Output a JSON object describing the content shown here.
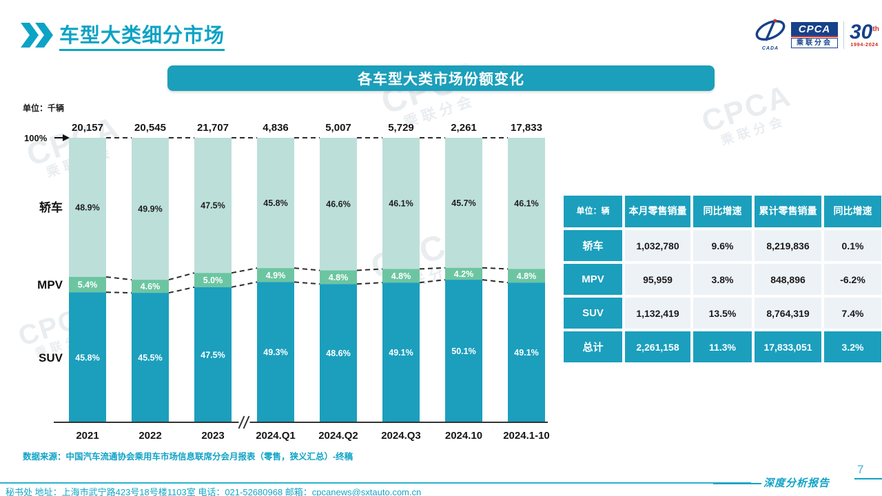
{
  "header": {
    "title": "车型大类细分市场"
  },
  "logo": {
    "swoosh_sub": "CADA",
    "cpca_text": "CPCA",
    "cpca_sub": "乘联分会",
    "anniversary_number": "30",
    "anniversary_sup": "th",
    "anniversary_years": "1994-2024"
  },
  "banner": {
    "title": "各车型大类市场份额变化"
  },
  "chart_data": {
    "type": "bar",
    "stacked": true,
    "title": "各车型大类市场份额变化",
    "unit_label": "单位：千辆",
    "axis_top_label": "100%",
    "ylim": [
      0,
      100
    ],
    "categories": [
      "2021",
      "2022",
      "2023",
      "2024.Q1",
      "2024.Q2",
      "2024.Q3",
      "2024.10",
      "2024.1-10"
    ],
    "totals": [
      "20,157",
      "20,545",
      "21,707",
      "4,836",
      "5,007",
      "5,729",
      "2,261",
      "17,833"
    ],
    "series": [
      {
        "name": "SUV",
        "color": "#1b9fbd",
        "label_color": "#ffffff",
        "values": [
          45.8,
          45.5,
          47.5,
          49.3,
          48.6,
          49.1,
          50.1,
          49.1
        ]
      },
      {
        "name": "MPV",
        "color": "#6cc5a1",
        "label_color": "#ffffff",
        "values": [
          5.4,
          4.6,
          5.0,
          4.9,
          4.8,
          4.8,
          4.2,
          4.8
        ]
      },
      {
        "name": "轿车",
        "color": "#bcdfd9",
        "label_color": "#1f1f1f",
        "values": [
          48.9,
          49.9,
          47.5,
          45.8,
          46.6,
          46.1,
          45.7,
          46.1
        ]
      }
    ],
    "axis_break_after_index": 2
  },
  "table": {
    "unit_header": "单位：辆",
    "columns": [
      "本月零售销量",
      "同比增速",
      "累计零售销量",
      "同比增速"
    ],
    "rows": [
      {
        "label": "轿车",
        "monthly": "1,032,780",
        "monthly_yoy": "9.6%",
        "cumulative": "8,219,836",
        "cumulative_yoy": "0.1%"
      },
      {
        "label": "MPV",
        "monthly": "95,959",
        "monthly_yoy": "3.8%",
        "cumulative": "848,896",
        "cumulative_yoy": "-6.2%"
      },
      {
        "label": "SUV",
        "monthly": "1,132,419",
        "monthly_yoy": "13.5%",
        "cumulative": "8,764,319",
        "cumulative_yoy": "7.4%"
      },
      {
        "label": "总计",
        "monthly": "2,261,158",
        "monthly_yoy": "11.3%",
        "cumulative": "17,833,051",
        "cumulative_yoy": "3.2%"
      }
    ]
  },
  "footer": {
    "source_note": "数据来源：中国汽车流通协会乘用车市场信息联席分会月报表（零售，狭义汇总）-终稿",
    "contact": "秘书处  地址：上海市武宁路423号18号楼1103室  电话：021-52680968   邮箱：cpcanews@sxtauto.com.cn",
    "page_number": "7",
    "report_label": "深度分析报告"
  },
  "colors": {
    "accent": "#0fa3c6",
    "banner": "#1b9fba",
    "bar_suv": "#1b9fbd",
    "bar_mpv": "#6cc5a1",
    "bar_sedan": "#bcdfd9",
    "table_header": "#1b9fbd",
    "cell_bg": "#edf2f7"
  }
}
